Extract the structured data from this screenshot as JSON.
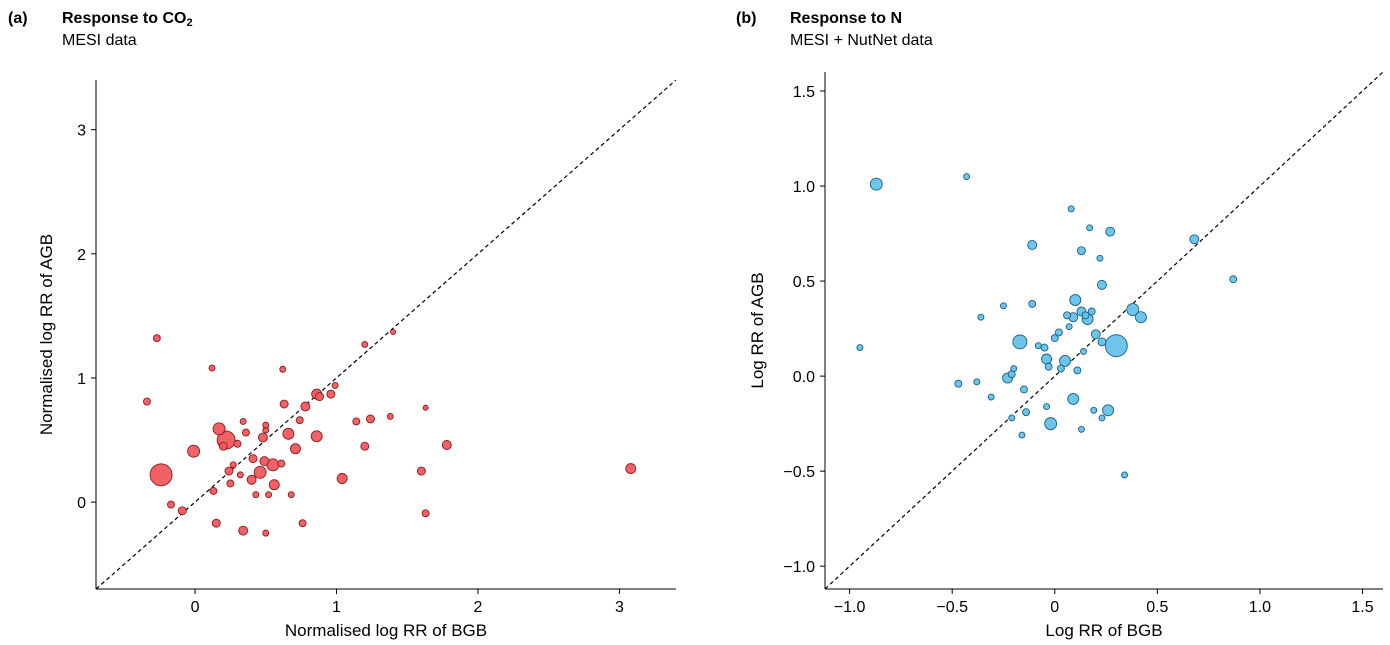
{
  "chart_data": [
    {
      "type": "scatter",
      "panel_label": "(a)",
      "title_main": "Response to CO",
      "title_sub": "2",
      "subtitle": "MESI data",
      "xlabel": "Normalised log RR of BGB",
      "ylabel": "Normalised log RR of AGB",
      "xlim": [
        -0.7,
        3.4
      ],
      "ylim": [
        -0.7,
        3.4
      ],
      "xticks": [
        0,
        1,
        2,
        3
      ],
      "yticks": [
        0,
        1,
        2,
        3
      ],
      "xtick_labels": [
        "0",
        "1",
        "2",
        "3"
      ],
      "ytick_labels": [
        "0",
        "1",
        "2",
        "3"
      ],
      "reference_line": "1:1 dashed",
      "grid": false,
      "marker_fill": "#f0595e",
      "marker_edge": "#8a1b1f",
      "points": [
        {
          "x": -0.24,
          "y": 0.22,
          "s": 11
        },
        {
          "x": -0.27,
          "y": 1.32,
          "s": 3.5
        },
        {
          "x": -0.34,
          "y": 0.81,
          "s": 3.5
        },
        {
          "x": -0.17,
          "y": -0.02,
          "s": 3.5
        },
        {
          "x": -0.09,
          "y": -0.07,
          "s": 4
        },
        {
          "x": -0.01,
          "y": 0.41,
          "s": 6
        },
        {
          "x": 0.12,
          "y": 1.08,
          "s": 3
        },
        {
          "x": 0.13,
          "y": 0.09,
          "s": 3.5
        },
        {
          "x": 0.15,
          "y": -0.17,
          "s": 4
        },
        {
          "x": 0.17,
          "y": 0.59,
          "s": 6
        },
        {
          "x": 0.2,
          "y": 0.45,
          "s": 4
        },
        {
          "x": 0.22,
          "y": 0.5,
          "s": 9
        },
        {
          "x": 0.24,
          "y": 0.25,
          "s": 4
        },
        {
          "x": 0.25,
          "y": 0.15,
          "s": 3.5
        },
        {
          "x": 0.27,
          "y": 0.3,
          "s": 3
        },
        {
          "x": 0.3,
          "y": 0.47,
          "s": 3.5
        },
        {
          "x": 0.32,
          "y": 0.22,
          "s": 3
        },
        {
          "x": 0.34,
          "y": 0.65,
          "s": 3
        },
        {
          "x": 0.36,
          "y": 0.56,
          "s": 3.5
        },
        {
          "x": 0.34,
          "y": -0.23,
          "s": 4.5
        },
        {
          "x": 0.4,
          "y": 0.18,
          "s": 4.5
        },
        {
          "x": 0.41,
          "y": 0.35,
          "s": 4
        },
        {
          "x": 0.43,
          "y": 0.06,
          "s": 3
        },
        {
          "x": 0.46,
          "y": 0.24,
          "s": 6
        },
        {
          "x": 0.48,
          "y": 0.52,
          "s": 4.5
        },
        {
          "x": 0.49,
          "y": 0.33,
          "s": 4.5
        },
        {
          "x": 0.5,
          "y": 0.58,
          "s": 3
        },
        {
          "x": 0.5,
          "y": 0.62,
          "s": 3
        },
        {
          "x": 0.5,
          "y": -0.25,
          "s": 3
        },
        {
          "x": 0.52,
          "y": 0.06,
          "s": 3
        },
        {
          "x": 0.55,
          "y": 0.3,
          "s": 6
        },
        {
          "x": 0.56,
          "y": 0.14,
          "s": 5
        },
        {
          "x": 0.61,
          "y": 0.31,
          "s": 3.5
        },
        {
          "x": 0.62,
          "y": 1.07,
          "s": 3
        },
        {
          "x": 0.63,
          "y": 0.79,
          "s": 4
        },
        {
          "x": 0.66,
          "y": 0.55,
          "s": 5.5
        },
        {
          "x": 0.68,
          "y": 0.06,
          "s": 3
        },
        {
          "x": 0.71,
          "y": 0.43,
          "s": 5
        },
        {
          "x": 0.74,
          "y": 0.66,
          "s": 3.5
        },
        {
          "x": 0.76,
          "y": -0.17,
          "s": 3.5
        },
        {
          "x": 0.78,
          "y": 0.77,
          "s": 4.5
        },
        {
          "x": 0.86,
          "y": 0.87,
          "s": 5
        },
        {
          "x": 0.86,
          "y": 0.53,
          "s": 5.5
        },
        {
          "x": 0.88,
          "y": 0.85,
          "s": 4
        },
        {
          "x": 0.96,
          "y": 0.87,
          "s": 4
        },
        {
          "x": 0.99,
          "y": 0.94,
          "s": 3
        },
        {
          "x": 1.04,
          "y": 0.19,
          "s": 5
        },
        {
          "x": 1.14,
          "y": 0.65,
          "s": 3.5
        },
        {
          "x": 1.2,
          "y": 0.45,
          "s": 4
        },
        {
          "x": 1.2,
          "y": 1.27,
          "s": 3
        },
        {
          "x": 1.24,
          "y": 0.67,
          "s": 4
        },
        {
          "x": 1.38,
          "y": 0.69,
          "s": 3
        },
        {
          "x": 1.4,
          "y": 1.37,
          "s": 2.5
        },
        {
          "x": 1.6,
          "y": 0.25,
          "s": 4
        },
        {
          "x": 1.63,
          "y": 0.76,
          "s": 2.5
        },
        {
          "x": 1.63,
          "y": -0.09,
          "s": 3.5
        },
        {
          "x": 1.78,
          "y": 0.46,
          "s": 4.5
        },
        {
          "x": 3.08,
          "y": 0.27,
          "s": 5
        }
      ]
    },
    {
      "type": "scatter",
      "panel_label": "(b)",
      "title_main": "Response to N",
      "title_sub": "",
      "subtitle": "MESI + NutNet data",
      "xlabel": "Log RR of BGB",
      "ylabel": "Log RR of AGB",
      "xlim": [
        -1.12,
        1.6
      ],
      "ylim": [
        -1.12,
        1.6
      ],
      "xticks": [
        -1.0,
        -0.5,
        0,
        0.5,
        1.0,
        1.5
      ],
      "yticks": [
        -1.0,
        -0.5,
        0.0,
        0.5,
        1.0,
        1.5
      ],
      "xtick_labels": [
        "−1.0",
        "−0.5",
        "0",
        "0.5",
        "1.0",
        "1.5"
      ],
      "ytick_labels": [
        "−1.0",
        "−0.5",
        "0.0",
        "0.5",
        "1.0",
        "1.5"
      ],
      "reference_line": "1:1 dashed",
      "grid": false,
      "marker_fill": "#66c2ea",
      "marker_edge": "#1a5f85",
      "points": [
        {
          "x": -0.87,
          "y": 1.01,
          "s": 6
        },
        {
          "x": -0.43,
          "y": 1.05,
          "s": 3
        },
        {
          "x": -0.95,
          "y": 0.15,
          "s": 3
        },
        {
          "x": -0.47,
          "y": -0.04,
          "s": 3.5
        },
        {
          "x": -0.38,
          "y": -0.03,
          "s": 3
        },
        {
          "x": -0.36,
          "y": 0.31,
          "s": 3
        },
        {
          "x": -0.31,
          "y": -0.11,
          "s": 3
        },
        {
          "x": -0.25,
          "y": 0.37,
          "s": 3
        },
        {
          "x": -0.23,
          "y": -0.01,
          "s": 5
        },
        {
          "x": -0.21,
          "y": 0.01,
          "s": 3.5
        },
        {
          "x": -0.21,
          "y": -0.22,
          "s": 3
        },
        {
          "x": -0.2,
          "y": 0.04,
          "s": 3
        },
        {
          "x": -0.17,
          "y": 0.18,
          "s": 7
        },
        {
          "x": -0.16,
          "y": -0.31,
          "s": 3
        },
        {
          "x": -0.15,
          "y": -0.07,
          "s": 3.5
        },
        {
          "x": -0.14,
          "y": -0.19,
          "s": 3.5
        },
        {
          "x": -0.11,
          "y": 0.69,
          "s": 4.5
        },
        {
          "x": -0.11,
          "y": 0.38,
          "s": 3.5
        },
        {
          "x": -0.08,
          "y": 0.16,
          "s": 3
        },
        {
          "x": -0.05,
          "y": 0.15,
          "s": 3.5
        },
        {
          "x": -0.04,
          "y": -0.16,
          "s": 3
        },
        {
          "x": -0.04,
          "y": 0.09,
          "s": 5
        },
        {
          "x": -0.03,
          "y": 0.05,
          "s": 3.5
        },
        {
          "x": -0.02,
          "y": -0.25,
          "s": 6
        },
        {
          "x": 0.0,
          "y": 0.2,
          "s": 3.5
        },
        {
          "x": 0.02,
          "y": 0.23,
          "s": 3.5
        },
        {
          "x": 0.03,
          "y": 0.04,
          "s": 3.5
        },
        {
          "x": 0.05,
          "y": 0.08,
          "s": 5.5
        },
        {
          "x": 0.06,
          "y": 0.32,
          "s": 3.5
        },
        {
          "x": 0.07,
          "y": 0.26,
          "s": 3
        },
        {
          "x": 0.08,
          "y": 0.88,
          "s": 3
        },
        {
          "x": 0.09,
          "y": 0.31,
          "s": 4.5
        },
        {
          "x": 0.09,
          "y": -0.12,
          "s": 5.5
        },
        {
          "x": 0.1,
          "y": 0.4,
          "s": 5.5
        },
        {
          "x": 0.11,
          "y": 0.03,
          "s": 3.5
        },
        {
          "x": 0.13,
          "y": 0.66,
          "s": 4
        },
        {
          "x": 0.13,
          "y": 0.34,
          "s": 4.5
        },
        {
          "x": 0.13,
          "y": -0.28,
          "s": 3
        },
        {
          "x": 0.14,
          "y": 0.13,
          "s": 3
        },
        {
          "x": 0.15,
          "y": 0.32,
          "s": 3.5
        },
        {
          "x": 0.16,
          "y": 0.3,
          "s": 5.5
        },
        {
          "x": 0.17,
          "y": 0.78,
          "s": 3
        },
        {
          "x": 0.18,
          "y": 0.34,
          "s": 3.5
        },
        {
          "x": 0.19,
          "y": -0.18,
          "s": 3
        },
        {
          "x": 0.2,
          "y": 0.22,
          "s": 4.5
        },
        {
          "x": 0.22,
          "y": 0.62,
          "s": 3
        },
        {
          "x": 0.23,
          "y": 0.18,
          "s": 4
        },
        {
          "x": 0.23,
          "y": 0.48,
          "s": 4.5
        },
        {
          "x": 0.23,
          "y": -0.22,
          "s": 3
        },
        {
          "x": 0.26,
          "y": -0.18,
          "s": 5.5
        },
        {
          "x": 0.27,
          "y": 0.76,
          "s": 4.5
        },
        {
          "x": 0.3,
          "y": 0.16,
          "s": 11
        },
        {
          "x": 0.34,
          "y": -0.52,
          "s": 3
        },
        {
          "x": 0.38,
          "y": 0.35,
          "s": 6
        },
        {
          "x": 0.42,
          "y": 0.31,
          "s": 5.5
        },
        {
          "x": 0.68,
          "y": 0.72,
          "s": 4.5
        },
        {
          "x": 0.87,
          "y": 0.51,
          "s": 3.5
        }
      ]
    }
  ]
}
